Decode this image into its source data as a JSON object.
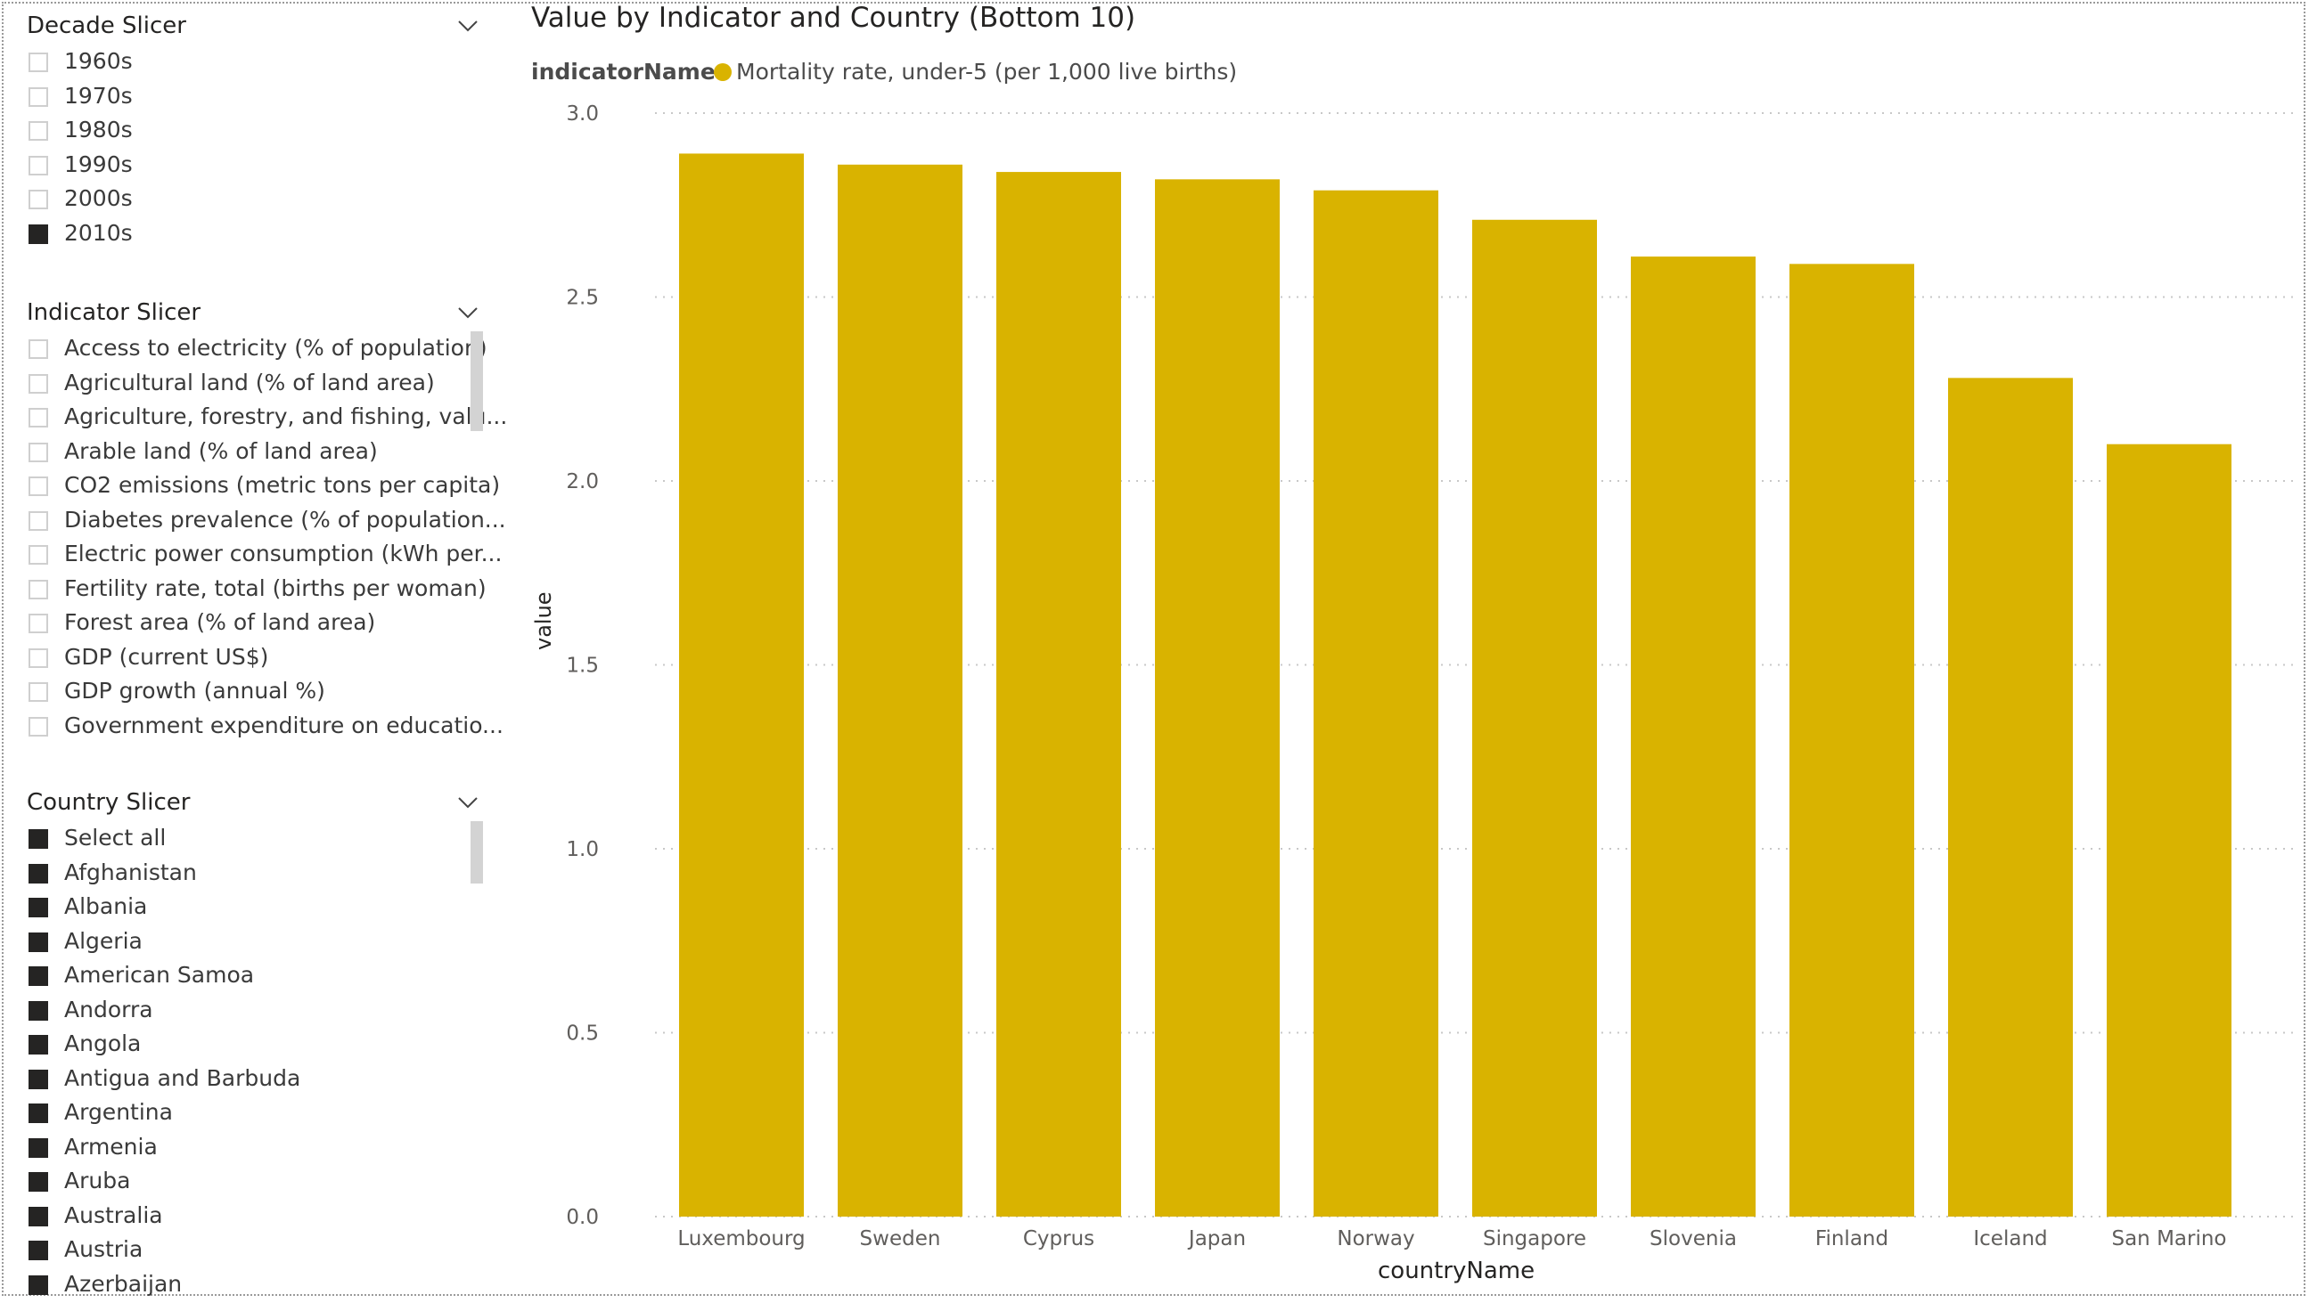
{
  "decade_slicer": {
    "title": "Decade Slicer",
    "items": [
      {
        "label": "1960s",
        "checked": false
      },
      {
        "label": "1970s",
        "checked": false
      },
      {
        "label": "1980s",
        "checked": false
      },
      {
        "label": "1990s",
        "checked": false
      },
      {
        "label": "2000s",
        "checked": false
      },
      {
        "label": "2010s",
        "checked": true
      }
    ]
  },
  "indicator_slicer": {
    "title": "Indicator Slicer",
    "items": [
      {
        "label": "Access to electricity (% of population)",
        "checked": false
      },
      {
        "label": "Agricultural land (% of land area)",
        "checked": false
      },
      {
        "label": "Agriculture, forestry, and fishing, valu...",
        "checked": false
      },
      {
        "label": "Arable land (% of land area)",
        "checked": false
      },
      {
        "label": "CO2 emissions (metric tons per capita)",
        "checked": false
      },
      {
        "label": "Diabetes prevalence (% of population...",
        "checked": false
      },
      {
        "label": "Electric power consumption (kWh per...",
        "checked": false
      },
      {
        "label": "Fertility rate, total (births per woman)",
        "checked": false
      },
      {
        "label": "Forest area (% of land area)",
        "checked": false
      },
      {
        "label": "GDP (current US$)",
        "checked": false
      },
      {
        "label": "GDP growth (annual %)",
        "checked": false
      },
      {
        "label": "Government expenditure on educatio...",
        "checked": false
      }
    ]
  },
  "country_slicer": {
    "title": "Country Slicer",
    "items": [
      {
        "label": "Select all",
        "checked": true
      },
      {
        "label": "Afghanistan",
        "checked": true
      },
      {
        "label": "Albania",
        "checked": true
      },
      {
        "label": "Algeria",
        "checked": true
      },
      {
        "label": "American Samoa",
        "checked": true
      },
      {
        "label": "Andorra",
        "checked": true
      },
      {
        "label": "Angola",
        "checked": true
      },
      {
        "label": "Antigua and Barbuda",
        "checked": true
      },
      {
        "label": "Argentina",
        "checked": true
      },
      {
        "label": "Armenia",
        "checked": true
      },
      {
        "label": "Aruba",
        "checked": true
      },
      {
        "label": "Australia",
        "checked": true
      },
      {
        "label": "Austria",
        "checked": true
      },
      {
        "label": "Azerbaijan",
        "checked": true
      }
    ]
  },
  "colors": {
    "bar": "#D9B300",
    "grid": "#c8c8c8",
    "checked": "#252423"
  },
  "chart_data": {
    "type": "bar",
    "title": "Value by Indicator and Country (Bottom 10)",
    "legend_title": "indicatorName",
    "legend_position": "top-left",
    "xlabel": "countryName",
    "ylabel": "value",
    "ylim": [
      0,
      3.0
    ],
    "yticks": [
      "0.0",
      "0.5",
      "1.0",
      "1.5",
      "2.0",
      "2.5",
      "3.0"
    ],
    "grid": true,
    "categories": [
      "Luxembourg",
      "Sweden",
      "Cyprus",
      "Japan",
      "Norway",
      "Singapore",
      "Slovenia",
      "Finland",
      "Iceland",
      "San Marino"
    ],
    "series": [
      {
        "name": "Mortality rate, under-5 (per 1,000 live births)",
        "values": [
          2.89,
          2.86,
          2.84,
          2.82,
          2.79,
          2.71,
          2.61,
          2.59,
          2.28,
          2.1
        ]
      }
    ]
  }
}
